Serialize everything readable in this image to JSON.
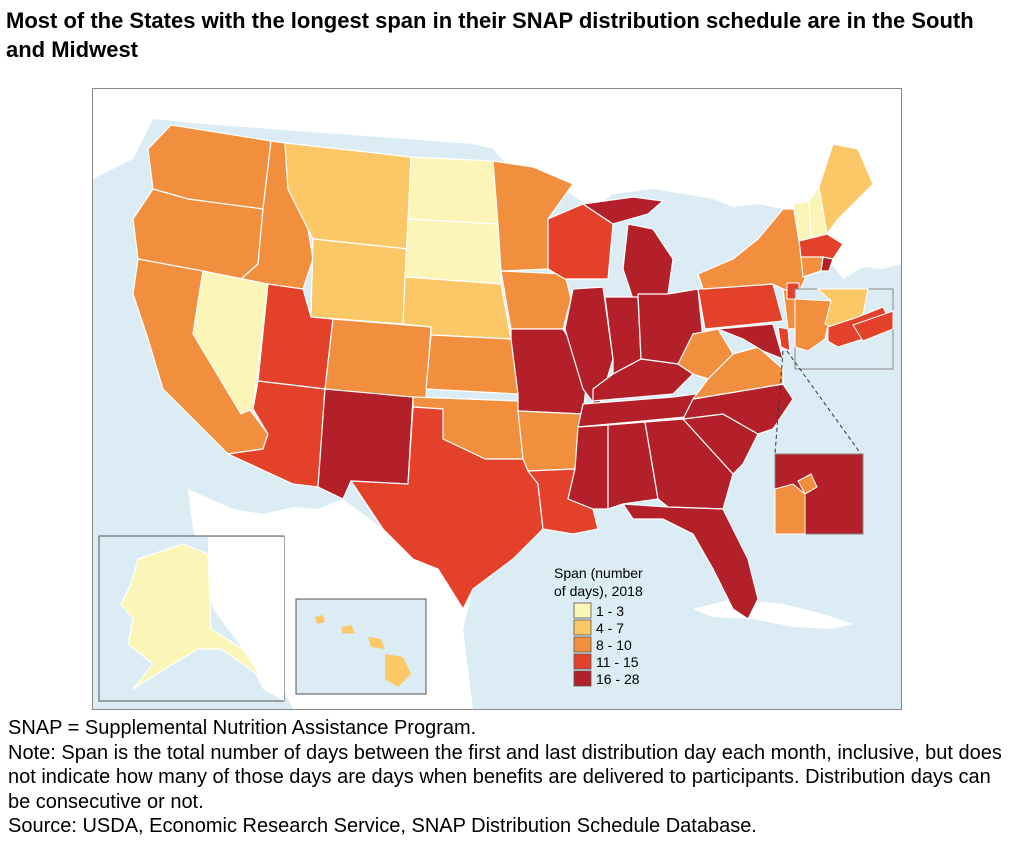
{
  "title": "Most of the States with the longest span in their SNAP distribution schedule are in the South and Midwest",
  "colors": {
    "water": "#dcecf5",
    "land": "#ffffff",
    "c1": "#fbf6b8",
    "c2": "#fcc766",
    "c3": "#f28f3e",
    "c4": "#e3412a",
    "c5": "#b3202a"
  },
  "legend": {
    "title_line1": "Span (number",
    "title_line2": "of days), 2018",
    "items": [
      {
        "label": "1 - 3",
        "color": "#fbf6b8"
      },
      {
        "label": "4 - 7",
        "color": "#fcc766"
      },
      {
        "label": "8 - 10",
        "color": "#f28f3e"
      },
      {
        "label": "11 - 15",
        "color": "#e3412a"
      },
      {
        "label": "16 - 28",
        "color": "#b3202a"
      }
    ]
  },
  "notes": {
    "abbrev": "SNAP = Supplemental Nutrition Assistance Program.",
    "note": "Note: Span is the total number of days between the first and last distribution day each month, inclusive, but does not indicate how many of those days are days when benefits are delivered to participants. Distribution days can be consecutive or not.",
    "source": "Source: USDA, Economic Research Service, SNAP Distribution Schedule Database."
  }
}
